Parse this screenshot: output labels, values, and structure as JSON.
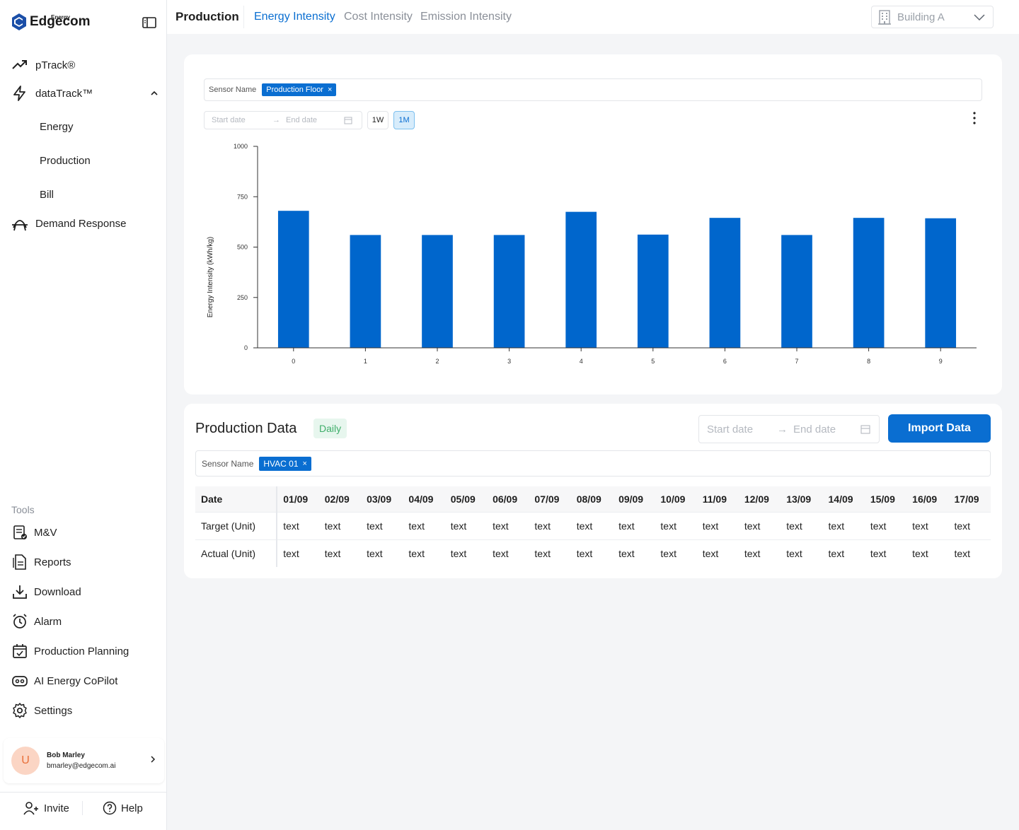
{
  "app": {
    "brand": "Edgecom",
    "brand_sub": "Energy"
  },
  "sidebar": {
    "items": [
      {
        "label": "pTrack®",
        "icon": "trend-up-icon"
      },
      {
        "label": "dataTrack™",
        "icon": "bolt-icon",
        "expanded": true
      },
      {
        "label": "Demand Response",
        "icon": "demand-response-icon"
      }
    ],
    "sub_items": [
      "Energy",
      "Production",
      "Bill"
    ],
    "tools_label": "Tools",
    "tools": [
      {
        "label": "M&V",
        "icon": "clipboard-check-icon"
      },
      {
        "label": "Reports",
        "icon": "report-icon"
      },
      {
        "label": "Download",
        "icon": "download-icon"
      },
      {
        "label": "Alarm",
        "icon": "alarm-clock-icon"
      },
      {
        "label": "Production Planning",
        "icon": "calendar-check-icon"
      },
      {
        "label": "AI Energy CoPilot",
        "icon": "robot-icon"
      },
      {
        "label": "Settings",
        "icon": "gear-icon"
      }
    ],
    "user": {
      "initial": "U",
      "name": "Bob Marley",
      "email": "bmarley@edgecom.ai"
    },
    "invite_label": "Invite",
    "help_label": "Help"
  },
  "header": {
    "title": "Production",
    "tabs": [
      {
        "label": "Energy Intensity",
        "active": true
      },
      {
        "label": "Cost Intensity",
        "active": false
      },
      {
        "label": "Emission Intensity",
        "active": false
      }
    ],
    "building": "Building A"
  },
  "chart_card": {
    "sensor_label": "Sensor Name",
    "sensor_tag": "Production Floor",
    "start_placeholder": "Start date",
    "end_placeholder": "End date",
    "range_buttons": [
      {
        "label": "1W",
        "active": false
      },
      {
        "label": "1M",
        "active": true
      }
    ]
  },
  "chart_data": {
    "type": "bar",
    "categories": [
      "0",
      "1",
      "2",
      "3",
      "4",
      "5",
      "6",
      "7",
      "8",
      "9"
    ],
    "values": [
      680,
      560,
      560,
      560,
      675,
      562,
      645,
      560,
      645,
      643
    ],
    "ylabel": "Energy Intensity (kWh/kg)",
    "xlabel": "",
    "ylim": [
      0,
      1000
    ],
    "yticks": [
      0,
      250,
      500,
      750,
      1000
    ],
    "bar_color": "#0066cc",
    "grid": false
  },
  "data_card": {
    "title": "Production Data",
    "badge": "Daily",
    "start_placeholder": "Start date",
    "end_placeholder": "End date",
    "import_label": "Import Data",
    "sensor_label": "Sensor Name",
    "sensor_tag": "HVAC 01",
    "table": {
      "first_header": "Date",
      "dates": [
        "01/09",
        "02/09",
        "03/09",
        "04/09",
        "05/09",
        "06/09",
        "07/09",
        "08/09",
        "09/09",
        "10/09",
        "11/09",
        "12/09",
        "13/09",
        "14/09",
        "15/09",
        "16/09",
        "17/09"
      ],
      "rows": [
        {
          "label": "Target (Unit)",
          "cell": "text"
        },
        {
          "label": "Actual (Unit)",
          "cell": "text"
        }
      ]
    }
  },
  "colors": {
    "accent": "#0a6ed1",
    "bar": "#0066cc",
    "badge_green": "#3fae6a"
  }
}
